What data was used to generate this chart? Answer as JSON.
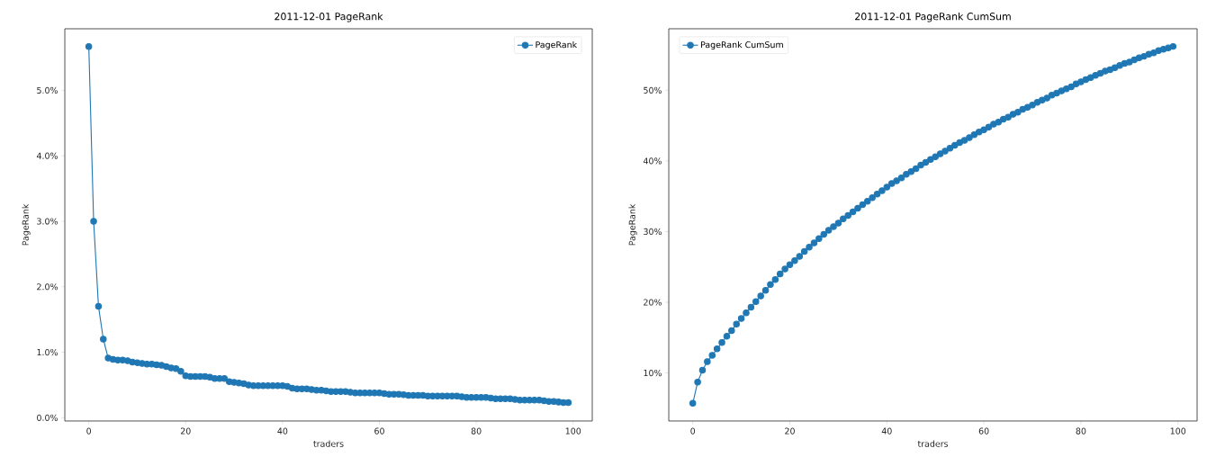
{
  "chart_data": [
    {
      "type": "line",
      "title": "2011-12-01 PageRank",
      "xlabel": "traders",
      "ylabel": "PageRank",
      "marker": "circle",
      "legend": "top right",
      "xlim": [
        -4.95,
        103.95
      ],
      "xticks": [
        0,
        20,
        40,
        60,
        80,
        100
      ],
      "ylim": [
        -0.05,
        5.94
      ],
      "yticks": [
        {
          "value": 0,
          "label": "0.0%"
        },
        {
          "value": 1,
          "label": "1.0%"
        },
        {
          "value": 2,
          "label": "2.0%"
        },
        {
          "value": 3,
          "label": "3.0%"
        },
        {
          "value": 4,
          "label": "4.0%"
        },
        {
          "value": 5,
          "label": "5.0%"
        }
      ],
      "series": [
        {
          "name": "PageRank",
          "color": "#1f77b4",
          "x": [
            0,
            1,
            2,
            3,
            4,
            5,
            6,
            7,
            8,
            9,
            10,
            11,
            12,
            13,
            14,
            15,
            16,
            17,
            18,
            19,
            20,
            21,
            22,
            23,
            24,
            25,
            26,
            27,
            28,
            29,
            30,
            31,
            32,
            33,
            34,
            35,
            36,
            37,
            38,
            39,
            40,
            41,
            42,
            43,
            44,
            45,
            46,
            47,
            48,
            49,
            50,
            51,
            52,
            53,
            54,
            55,
            56,
            57,
            58,
            59,
            60,
            61,
            62,
            63,
            64,
            65,
            66,
            67,
            68,
            69,
            70,
            71,
            72,
            73,
            74,
            75,
            76,
            77,
            78,
            79,
            80,
            81,
            82,
            83,
            84,
            85,
            86,
            87,
            88,
            89,
            90,
            91,
            92,
            93,
            94,
            95,
            96,
            97,
            98,
            99
          ],
          "values": [
            5.67,
            3.0,
            1.7,
            1.2,
            0.91,
            0.89,
            0.88,
            0.88,
            0.87,
            0.85,
            0.84,
            0.83,
            0.82,
            0.82,
            0.81,
            0.8,
            0.78,
            0.76,
            0.75,
            0.71,
            0.64,
            0.63,
            0.63,
            0.63,
            0.63,
            0.62,
            0.6,
            0.6,
            0.6,
            0.55,
            0.54,
            0.53,
            0.52,
            0.5,
            0.49,
            0.49,
            0.49,
            0.49,
            0.49,
            0.49,
            0.49,
            0.48,
            0.45,
            0.44,
            0.44,
            0.44,
            0.43,
            0.42,
            0.42,
            0.41,
            0.4,
            0.4,
            0.4,
            0.4,
            0.39,
            0.38,
            0.38,
            0.38,
            0.38,
            0.38,
            0.38,
            0.37,
            0.36,
            0.36,
            0.36,
            0.35,
            0.34,
            0.34,
            0.34,
            0.34,
            0.33,
            0.33,
            0.33,
            0.33,
            0.33,
            0.33,
            0.33,
            0.32,
            0.31,
            0.31,
            0.31,
            0.31,
            0.31,
            0.3,
            0.29,
            0.29,
            0.29,
            0.29,
            0.28,
            0.27,
            0.27,
            0.27,
            0.27,
            0.27,
            0.26,
            0.25,
            0.25,
            0.24,
            0.23,
            0.23
          ]
        }
      ]
    },
    {
      "type": "line",
      "title": "2011-12-01 PageRank CumSum",
      "xlabel": "traders",
      "ylabel": "PageRank",
      "marker": "circle",
      "legend": "top left",
      "xlim": [
        -4.95,
        103.95
      ],
      "xticks": [
        0,
        20,
        40,
        60,
        80,
        100
      ],
      "ylim": [
        3.2,
        58.7
      ],
      "yticks": [
        {
          "value": 10,
          "label": "10%"
        },
        {
          "value": 20,
          "label": "20%"
        },
        {
          "value": 30,
          "label": "30%"
        },
        {
          "value": 40,
          "label": "40%"
        },
        {
          "value": 50,
          "label": "50%"
        }
      ],
      "series": [
        {
          "name": "PageRank CumSum",
          "color": "#1f77b4",
          "x": [
            0,
            1,
            2,
            3,
            4,
            5,
            6,
            7,
            8,
            9,
            10,
            11,
            12,
            13,
            14,
            15,
            16,
            17,
            18,
            19,
            20,
            21,
            22,
            23,
            24,
            25,
            26,
            27,
            28,
            29,
            30,
            31,
            32,
            33,
            34,
            35,
            36,
            37,
            38,
            39,
            40,
            41,
            42,
            43,
            44,
            45,
            46,
            47,
            48,
            49,
            50,
            51,
            52,
            53,
            54,
            55,
            56,
            57,
            58,
            59,
            60,
            61,
            62,
            63,
            64,
            65,
            66,
            67,
            68,
            69,
            70,
            71,
            72,
            73,
            74,
            75,
            76,
            77,
            78,
            79,
            80,
            81,
            82,
            83,
            84,
            85,
            86,
            87,
            88,
            89,
            90,
            91,
            92,
            93,
            94,
            95,
            96,
            97,
            98,
            99
          ],
          "values": [
            5.7,
            8.7,
            10.4,
            11.6,
            12.5,
            13.4,
            14.3,
            15.2,
            16.0,
            16.9,
            17.7,
            18.5,
            19.3,
            20.1,
            20.9,
            21.7,
            22.5,
            23.2,
            24.0,
            24.7,
            25.3,
            25.9,
            26.5,
            27.2,
            27.8,
            28.4,
            29.0,
            29.6,
            30.2,
            30.7,
            31.2,
            31.8,
            32.3,
            32.8,
            33.3,
            33.8,
            34.3,
            34.8,
            35.3,
            35.8,
            36.3,
            36.8,
            37.2,
            37.6,
            38.1,
            38.5,
            38.9,
            39.4,
            39.8,
            40.2,
            40.6,
            41.0,
            41.4,
            41.8,
            42.2,
            42.6,
            42.9,
            43.3,
            43.7,
            44.1,
            44.4,
            44.8,
            45.2,
            45.5,
            45.9,
            46.2,
            46.6,
            46.9,
            47.3,
            47.6,
            47.9,
            48.3,
            48.6,
            48.9,
            49.3,
            49.6,
            49.9,
            50.2,
            50.5,
            50.9,
            51.2,
            51.5,
            51.8,
            52.1,
            52.4,
            52.7,
            52.9,
            53.2,
            53.5,
            53.8,
            54.0,
            54.3,
            54.6,
            54.8,
            55.1,
            55.3,
            55.6,
            55.8,
            56.0,
            56.2
          ]
        }
      ]
    }
  ]
}
